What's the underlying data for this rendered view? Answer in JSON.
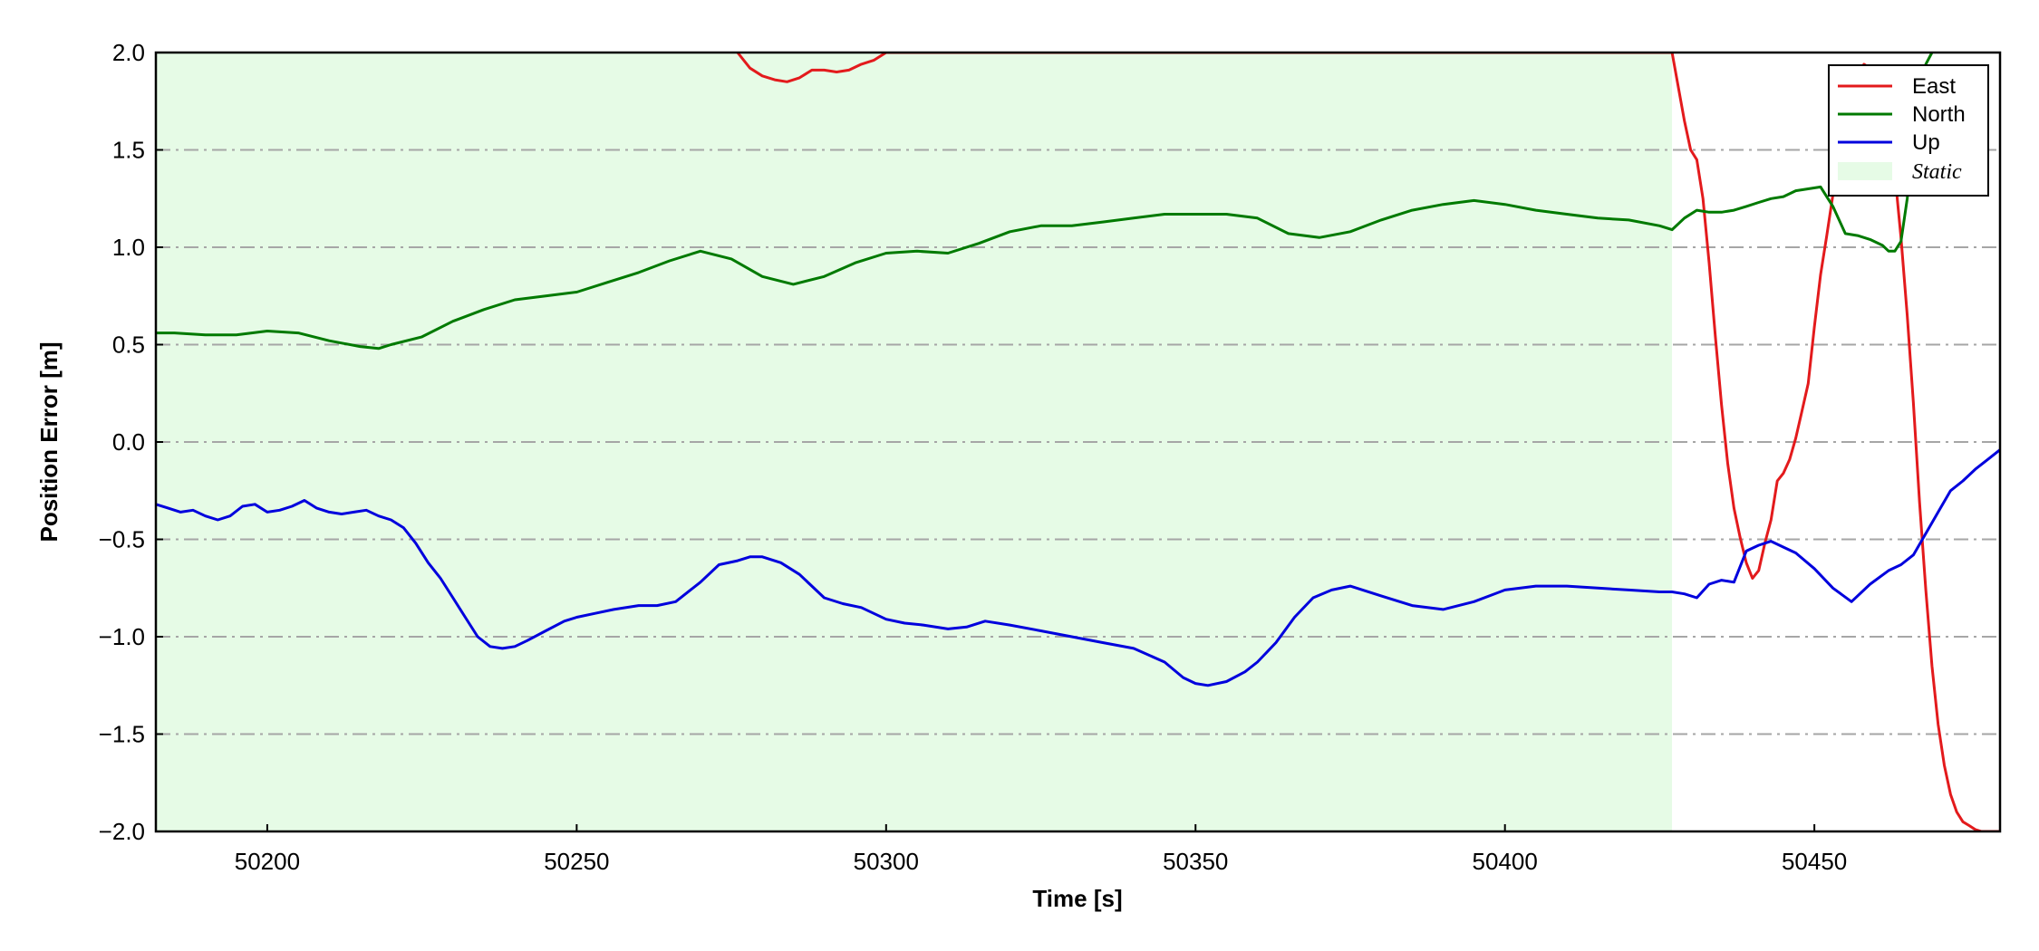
{
  "chart_data": {
    "type": "line",
    "xlabel": "Time [s]",
    "ylabel": "Position Error [m]",
    "xlim": [
      50182,
      50480
    ],
    "ylim": [
      -2.0,
      2.0
    ],
    "xticks": [
      50200,
      50250,
      50300,
      50350,
      50400,
      50450
    ],
    "xtick_labels": [
      "50200",
      "50250",
      "50300",
      "50350",
      "50400",
      "50450"
    ],
    "yticks": [
      -2.0,
      -1.5,
      -1.0,
      -0.5,
      0.0,
      0.5,
      1.0,
      1.5,
      2.0
    ],
    "ytick_labels": [
      "−2.0",
      "−1.5",
      "−1.0",
      "−0.5",
      "0.0",
      "0.5",
      "1.0",
      "1.5",
      "2.0"
    ],
    "grid": "horizontal dash-dot",
    "legend_position": "top-right",
    "legend": [
      "East",
      "North",
      "Up",
      "Static"
    ],
    "static_region": {
      "label": "Static",
      "x_start": 50182,
      "x_end": 50427,
      "color": "#e6fbe6"
    },
    "series": [
      {
        "name": "East",
        "color": "#e31a1c",
        "x": [
          50276,
          50278,
          50280,
          50282,
          50284,
          50286,
          50288,
          50290,
          50292,
          50294,
          50296,
          50298,
          50300,
          50427,
          50429,
          50430,
          50431,
          50432,
          50433,
          50434,
          50435,
          50436,
          50437,
          50438,
          50439,
          50440,
          50441,
          50442,
          50443,
          50444,
          50445,
          50446,
          50447,
          50448,
          50449,
          50450,
          50451,
          50452,
          50453,
          50454,
          50455,
          50456,
          50457,
          50458,
          50459,
          50460,
          50461,
          50462,
          50463,
          50464,
          50465,
          50466,
          50467,
          50468,
          50469,
          50470,
          50471,
          50472,
          50473,
          50474,
          50475,
          50476,
          50477,
          50478,
          50479,
          50480
        ],
        "y": [
          2.0,
          1.92,
          1.88,
          1.86,
          1.85,
          1.87,
          1.91,
          1.91,
          1.9,
          1.91,
          1.94,
          1.96,
          2.0,
          2.0,
          1.65,
          1.5,
          1.45,
          1.25,
          0.92,
          0.54,
          0.19,
          -0.11,
          -0.34,
          -0.49,
          -0.62,
          -0.7,
          -0.66,
          -0.52,
          -0.4,
          -0.2,
          -0.16,
          -0.09,
          0.02,
          0.16,
          0.3,
          0.59,
          0.86,
          1.06,
          1.27,
          1.48,
          1.63,
          1.77,
          1.88,
          1.94,
          1.92,
          1.87,
          1.78,
          1.62,
          1.38,
          1.05,
          0.65,
          0.2,
          -0.31,
          -0.76,
          -1.15,
          -1.45,
          -1.66,
          -1.81,
          -1.9,
          -1.95,
          -1.97,
          -1.99,
          -2.0,
          -2.0,
          -2.0,
          -2.0
        ]
      },
      {
        "name": "North",
        "color": "#007a00",
        "x": [
          50182,
          50185,
          50190,
          50195,
          50200,
          50205,
          50210,
          50215,
          50218,
          50220,
          50225,
          50230,
          50235,
          50240,
          50245,
          50250,
          50255,
          50260,
          50265,
          50270,
          50275,
          50280,
          50285,
          50290,
          50295,
          50300,
          50305,
          50310,
          50315,
          50320,
          50325,
          50330,
          50335,
          50340,
          50345,
          50350,
          50355,
          50360,
          50365,
          50370,
          50375,
          50380,
          50385,
          50390,
          50395,
          50400,
          50405,
          50410,
          50415,
          50420,
          50425,
          50427,
          50429,
          50431,
          50433,
          50435,
          50437,
          50439,
          50441,
          50443,
          50445,
          50447,
          50449,
          50451,
          50453,
          50455,
          50457,
          50459,
          50461,
          50462,
          50463,
          50464,
          50465,
          50466,
          50467,
          50468,
          50469
        ],
        "y": [
          0.56,
          0.56,
          0.55,
          0.55,
          0.57,
          0.56,
          0.52,
          0.49,
          0.48,
          0.5,
          0.54,
          0.62,
          0.68,
          0.73,
          0.75,
          0.77,
          0.82,
          0.87,
          0.93,
          0.98,
          0.94,
          0.85,
          0.81,
          0.85,
          0.92,
          0.97,
          0.98,
          0.97,
          1.02,
          1.08,
          1.11,
          1.11,
          1.13,
          1.15,
          1.17,
          1.17,
          1.17,
          1.15,
          1.07,
          1.05,
          1.08,
          1.14,
          1.19,
          1.22,
          1.24,
          1.22,
          1.19,
          1.17,
          1.15,
          1.14,
          1.11,
          1.09,
          1.15,
          1.19,
          1.18,
          1.18,
          1.19,
          1.21,
          1.23,
          1.25,
          1.26,
          1.29,
          1.3,
          1.31,
          1.21,
          1.07,
          1.06,
          1.04,
          1.01,
          0.98,
          0.98,
          1.03,
          1.25,
          1.55,
          1.8,
          1.94,
          2.0
        ]
      },
      {
        "name": "Up",
        "color": "#0000dd",
        "x": [
          50182,
          50184,
          50186,
          50188,
          50190,
          50192,
          50194,
          50196,
          50198,
          50200,
          50202,
          50204,
          50206,
          50208,
          50210,
          50212,
          50214,
          50216,
          50218,
          50220,
          50222,
          50224,
          50226,
          50228,
          50230,
          50232,
          50234,
          50236,
          50238,
          50240,
          50242,
          50245,
          50248,
          50250,
          50253,
          50256,
          50260,
          50263,
          50266,
          50270,
          50273,
          50276,
          50278,
          50280,
          50283,
          50286,
          50290,
          50293,
          50296,
          50300,
          50303,
          50306,
          50310,
          50313,
          50316,
          50320,
          50325,
          50330,
          50335,
          50340,
          50345,
          50348,
          50350,
          50352,
          50355,
          50358,
          50360,
          50363,
          50366,
          50369,
          50372,
          50375,
          50380,
          50385,
          50390,
          50395,
          50400,
          50405,
          50410,
          50415,
          50420,
          50425,
          50427,
          50429,
          50431,
          50433,
          50435,
          50437,
          50439,
          50441,
          50443,
          50445,
          50447,
          50450,
          50453,
          50456,
          50459,
          50462,
          50464,
          50466,
          50468,
          50470,
          50472,
          50474,
          50476,
          50478,
          50480
        ],
        "y": [
          -0.32,
          -0.34,
          -0.36,
          -0.35,
          -0.38,
          -0.4,
          -0.38,
          -0.33,
          -0.32,
          -0.36,
          -0.35,
          -0.33,
          -0.3,
          -0.34,
          -0.36,
          -0.37,
          -0.36,
          -0.35,
          -0.38,
          -0.4,
          -0.44,
          -0.52,
          -0.62,
          -0.7,
          -0.8,
          -0.9,
          -1.0,
          -1.05,
          -1.06,
          -1.05,
          -1.02,
          -0.97,
          -0.92,
          -0.9,
          -0.88,
          -0.86,
          -0.84,
          -0.84,
          -0.82,
          -0.72,
          -0.63,
          -0.61,
          -0.59,
          -0.59,
          -0.62,
          -0.68,
          -0.8,
          -0.83,
          -0.85,
          -0.91,
          -0.93,
          -0.94,
          -0.96,
          -0.95,
          -0.92,
          -0.94,
          -0.97,
          -1.0,
          -1.03,
          -1.06,
          -1.13,
          -1.21,
          -1.24,
          -1.25,
          -1.23,
          -1.18,
          -1.13,
          -1.03,
          -0.9,
          -0.8,
          -0.76,
          -0.74,
          -0.79,
          -0.84,
          -0.86,
          -0.82,
          -0.76,
          -0.74,
          -0.74,
          -0.75,
          -0.76,
          -0.77,
          -0.77,
          -0.78,
          -0.8,
          -0.73,
          -0.71,
          -0.72,
          -0.56,
          -0.53,
          -0.51,
          -0.54,
          -0.57,
          -0.65,
          -0.75,
          -0.82,
          -0.73,
          -0.66,
          -0.63,
          -0.58,
          -0.47,
          -0.36,
          -0.25,
          -0.2,
          -0.14,
          -0.09,
          -0.04
        ]
      }
    ]
  }
}
